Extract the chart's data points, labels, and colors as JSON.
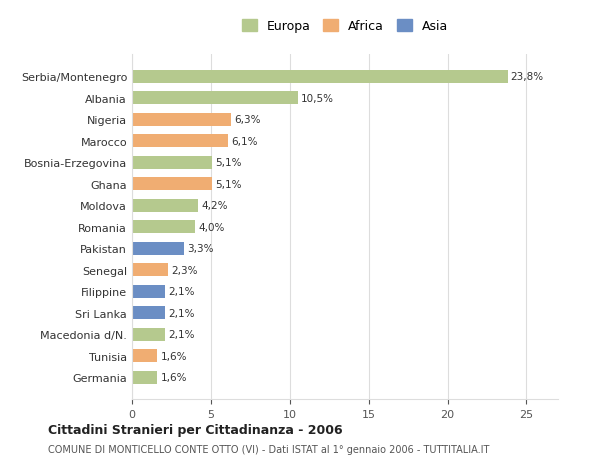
{
  "categories": [
    "Serbia/Montenegro",
    "Albania",
    "Nigeria",
    "Marocco",
    "Bosnia-Erzegovina",
    "Ghana",
    "Moldova",
    "Romania",
    "Pakistan",
    "Senegal",
    "Filippine",
    "Sri Lanka",
    "Macedonia d/N.",
    "Tunisia",
    "Germania"
  ],
  "values": [
    23.8,
    10.5,
    6.3,
    6.1,
    5.1,
    5.1,
    4.2,
    4.0,
    3.3,
    2.3,
    2.1,
    2.1,
    2.1,
    1.6,
    1.6
  ],
  "labels": [
    "23,8%",
    "10,5%",
    "6,3%",
    "6,1%",
    "5,1%",
    "5,1%",
    "4,2%",
    "4,0%",
    "3,3%",
    "2,3%",
    "2,1%",
    "2,1%",
    "2,1%",
    "1,6%",
    "1,6%"
  ],
  "continents": [
    "Europa",
    "Europa",
    "Africa",
    "Africa",
    "Europa",
    "Africa",
    "Europa",
    "Europa",
    "Asia",
    "Africa",
    "Asia",
    "Asia",
    "Europa",
    "Africa",
    "Europa"
  ],
  "colors": {
    "Europa": "#b5c98e",
    "Africa": "#f0ad72",
    "Asia": "#6b8ec4"
  },
  "legend": {
    "Europa": "#b5c98e",
    "Africa": "#f0ad72",
    "Asia": "#6b8ec4"
  },
  "title1": "Cittadini Stranieri per Cittadinanza - 2006",
  "title2": "COMUNE DI MONTICELLO CONTE OTTO (VI) - Dati ISTAT al 1° gennaio 2006 - TUTTITALIA.IT",
  "xlim": [
    0,
    27
  ],
  "xticks": [
    0,
    5,
    10,
    15,
    20,
    25
  ],
  "background_color": "#ffffff",
  "grid_color": "#dddddd",
  "bar_height": 0.6
}
